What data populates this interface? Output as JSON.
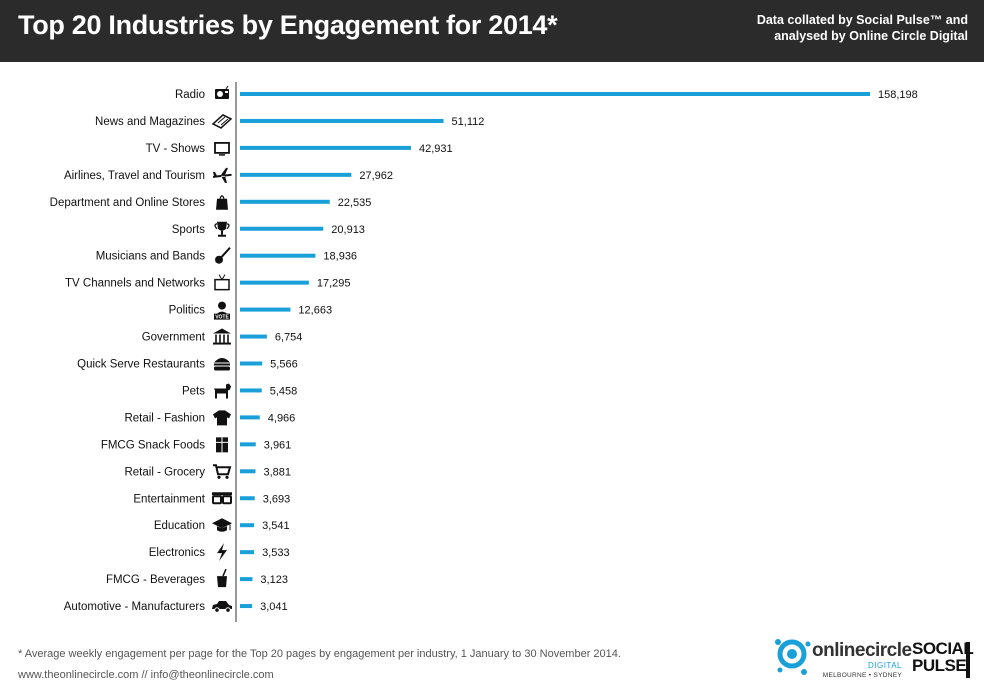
{
  "header": {
    "title": "Top 20 Industries by Engagement for 2014*",
    "source_line1": "Data collated by Social Pulse™ and",
    "source_line2": "analysed by Online Circle Digital"
  },
  "chart_data": {
    "type": "bar",
    "orientation": "horizontal",
    "categories": [
      "Radio",
      "News and Magazines",
      "TV - Shows",
      "Airlines, Travel and Tourism",
      "Department and Online Stores",
      "Sports",
      "Musicians and Bands",
      "TV Channels and Networks",
      "Politics",
      "Government",
      "Quick Serve Restaurants",
      "Pets",
      "Retail - Fashion",
      "FMCG Snack Foods",
      "Retail - Grocery",
      "Entertainment",
      "Education",
      "Electronics",
      "FMCG - Beverages",
      "Automotive - Manufacturers"
    ],
    "values": [
      158198,
      51112,
      42931,
      27962,
      22535,
      20913,
      18936,
      17295,
      12663,
      6754,
      5566,
      5458,
      4966,
      3961,
      3881,
      3693,
      3541,
      3533,
      3123,
      3041
    ],
    "value_labels": [
      "158,198",
      "51,112",
      "42,931",
      "27,962",
      "22,535",
      "20,913",
      "18,936",
      "17,295",
      "12,663",
      "6,754",
      "5,566",
      "5,458",
      "4,966",
      "3,961",
      "3,881",
      "3,693",
      "3,541",
      "3,533",
      "3,123",
      "3,041"
    ],
    "icons": [
      "radio-icon",
      "newspaper-icon",
      "tv-icon",
      "airplane-icon",
      "shopping-bag-icon",
      "trophy-icon",
      "guitar-icon",
      "tv-antenna-icon",
      "vote-icon",
      "government-building-icon",
      "burger-icon",
      "dog-icon",
      "tshirt-icon",
      "snack-box-icon",
      "shopping-cart-icon",
      "3d-glasses-icon",
      "graduation-cap-icon",
      "lightning-icon",
      "drink-cup-icon",
      "car-icon"
    ],
    "bar_color": "#1aa0d8",
    "grid": false,
    "legend": "none"
  },
  "footer": {
    "footnote": "* Average weekly engagement per page for the Top 20 pages by engagement per industry, 1 January to 30 November 2014.",
    "website": "www.theonlinecircle.com // info@theonlinecircle.com"
  },
  "logos": {
    "online_circle": "onlinecircle",
    "online_circle_sub": "DIGITAL",
    "online_circle_cities": "MELBOURNE • SYDNEY",
    "social_pulse_1": "SOCIAL",
    "social_pulse_2": "PULSE"
  }
}
